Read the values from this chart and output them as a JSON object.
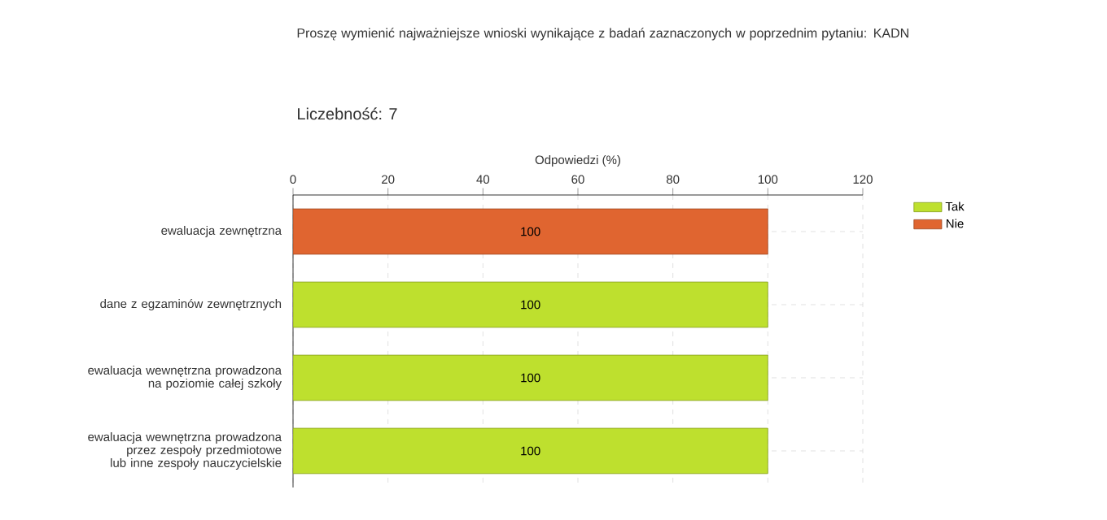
{
  "chart_data": {
    "type": "bar",
    "orientation": "horizontal",
    "title": "Proszę wymienić najważniejsze wnioski wynikające z badań zaznaczonych w poprzednim pytaniu: KADN",
    "subtitle": "Liczebność: 7",
    "xlabel": "Odpowiedzi (%)",
    "categories": [
      "ewaluacja zewnętrzna",
      "dane z egzaminów zewnętrznych",
      "ewaluacja wewnętrzna prowadzona na poziomie całej szkoły",
      "ewaluacja wewnętrzna prowadzona przez zespoły przedmiotowe lub inne zespoły nauczycielskie"
    ],
    "series": [
      {
        "name": "Tak",
        "color": "#bee02e",
        "values": [
          null,
          100,
          100,
          100
        ]
      },
      {
        "name": "Nie",
        "color": "#e06530",
        "values": [
          100,
          null,
          null,
          null
        ]
      }
    ],
    "xlim": [
      0,
      120
    ],
    "xticks": [
      0,
      20,
      40,
      60,
      80,
      100,
      120
    ],
    "grid": true,
    "legend": "top right",
    "data_labels": true
  }
}
